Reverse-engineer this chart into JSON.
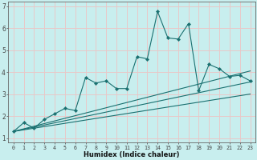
{
  "xlabel": "Humidex (Indice chaleur)",
  "background_color": "#c8eeee",
  "grid_color": "#e8c8c8",
  "line_color": "#1a7070",
  "xlim": [
    -0.5,
    23.5
  ],
  "ylim": [
    0.8,
    7.2
  ],
  "yticks": [
    1,
    2,
    3,
    4,
    5,
    6,
    7
  ],
  "xticks": [
    0,
    1,
    2,
    3,
    4,
    5,
    6,
    7,
    8,
    9,
    10,
    11,
    12,
    13,
    14,
    15,
    16,
    17,
    18,
    19,
    20,
    21,
    22,
    23
  ],
  "series_main": {
    "x": [
      0,
      1,
      2,
      3,
      4,
      5,
      6,
      7,
      8,
      9,
      10,
      11,
      12,
      13,
      14,
      15,
      16,
      17,
      18,
      19,
      20,
      21,
      22,
      23
    ],
    "y": [
      1.3,
      1.7,
      1.45,
      1.85,
      2.1,
      2.35,
      2.25,
      3.75,
      3.5,
      3.6,
      3.25,
      3.25,
      4.7,
      4.6,
      6.75,
      5.55,
      5.5,
      6.2,
      3.15,
      4.35,
      4.15,
      3.8,
      3.85,
      3.6
    ]
  },
  "series_lines": [
    {
      "x": [
        0,
        23
      ],
      "y": [
        1.3,
        3.55
      ]
    },
    {
      "x": [
        0,
        23
      ],
      "y": [
        1.3,
        3.0
      ]
    },
    {
      "x": [
        0,
        23
      ],
      "y": [
        1.3,
        4.05
      ]
    }
  ]
}
